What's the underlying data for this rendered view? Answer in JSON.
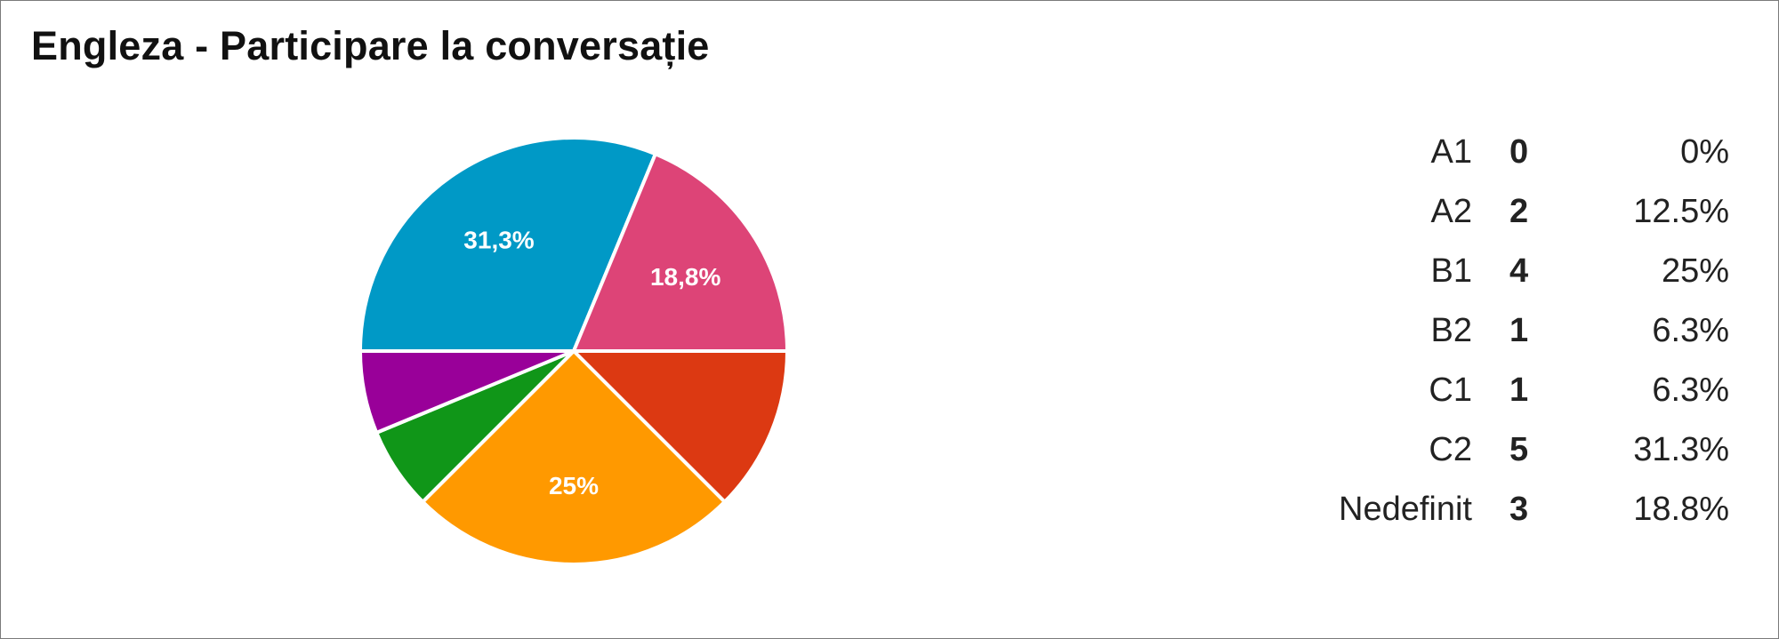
{
  "title": "Engleza - Participare la conversație",
  "chart_data": {
    "type": "pie",
    "title": "Engleza - Participare la conversație",
    "slices": [
      {
        "label": "A1",
        "count": 0,
        "percent_text": "0%",
        "value": 0,
        "color": "#3366cc",
        "slice_label": ""
      },
      {
        "label": "A2",
        "count": 2,
        "percent_text": "12.5%",
        "value": 12.5,
        "color": "#dc3912",
        "slice_label": ""
      },
      {
        "label": "B1",
        "count": 4,
        "percent_text": "25%",
        "value": 25,
        "color": "#ff9900",
        "slice_label": "25%"
      },
      {
        "label": "B2",
        "count": 1,
        "percent_text": "6.3%",
        "value": 6.25,
        "color": "#109618",
        "slice_label": ""
      },
      {
        "label": "C1",
        "count": 1,
        "percent_text": "6.3%",
        "value": 6.25,
        "color": "#990099",
        "slice_label": ""
      },
      {
        "label": "C2",
        "count": 5,
        "percent_text": "31.3%",
        "value": 31.25,
        "color": "#0099c6",
        "slice_label": "31,3%"
      },
      {
        "label": "Nedefinit",
        "count": 3,
        "percent_text": "18.8%",
        "value": 18.75,
        "color": "#dd4477",
        "slice_label": "18,8%"
      }
    ],
    "legend_position": "right"
  }
}
